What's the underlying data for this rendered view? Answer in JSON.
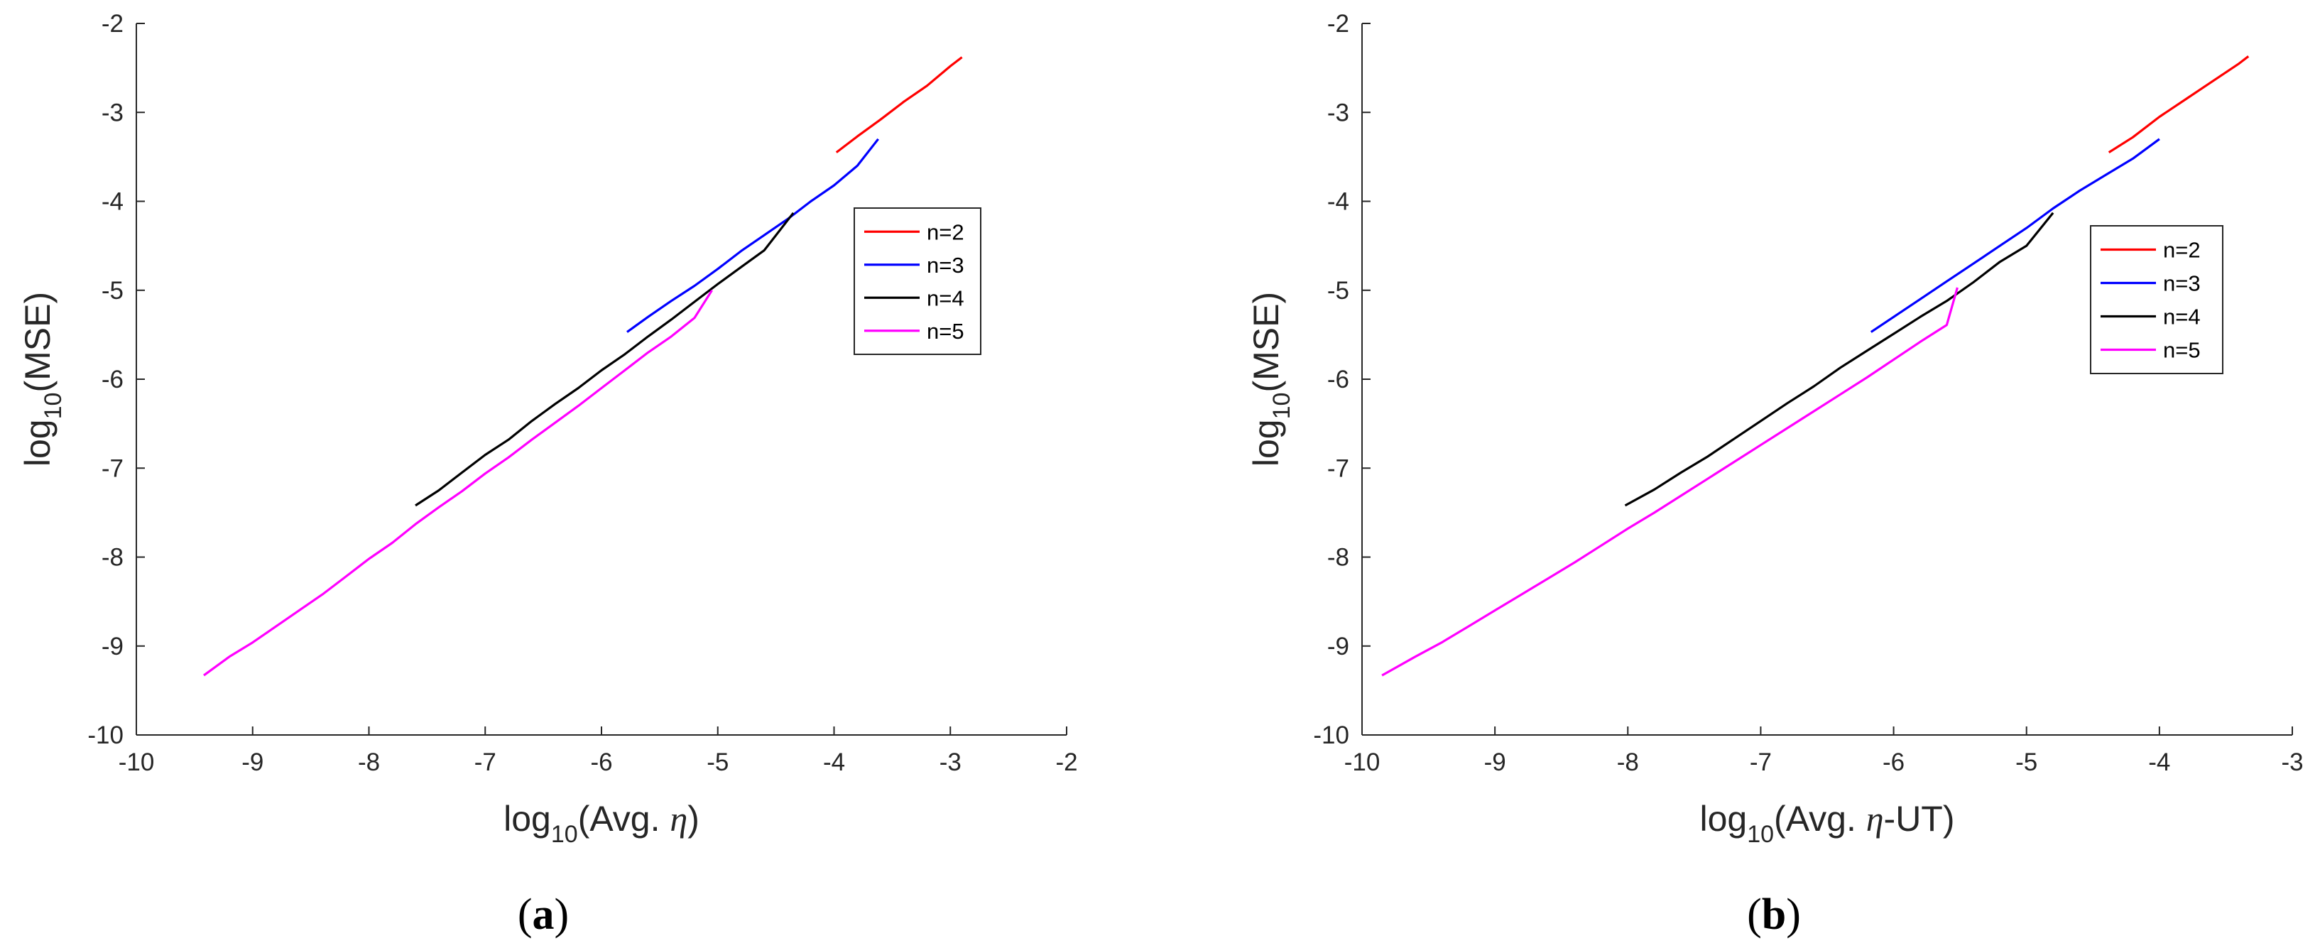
{
  "charts": [
    {
      "caption_letter": "a",
      "chart_data": {
        "type": "line",
        "xlabel_prefix": "log",
        "xlabel_sub": "10",
        "xlabel_main": "(Avg. ",
        "xlabel_eta": "η",
        "xlabel_suffix": ")",
        "ylabel_prefix": "log",
        "ylabel_sub": "10",
        "ylabel_main": "(MSE)",
        "xlim": [
          -10,
          -2
        ],
        "ylim": [
          -10,
          -2
        ],
        "xticks": [
          "-10",
          "-9",
          "-8",
          "-7",
          "-6",
          "-5",
          "-4",
          "-3",
          "-2"
        ],
        "yticks": [
          "-10",
          "-9",
          "-8",
          "-7",
          "-6",
          "-5",
          "-4",
          "-3",
          "-2"
        ],
        "legend_position": "right",
        "series": [
          {
            "name": "n=2",
            "color": "#ff0000",
            "x": [
              -3.98,
              -3.8,
              -3.6,
              -3.4,
              -3.2,
              -3.0,
              -2.9
            ],
            "y": [
              -3.45,
              -3.27,
              -3.08,
              -2.88,
              -2.7,
              -2.48,
              -2.38
            ]
          },
          {
            "name": "n=3",
            "color": "#0000ff",
            "x": [
              -5.78,
              -5.6,
              -5.4,
              -5.2,
              -5.0,
              -4.8,
              -4.6,
              -4.4,
              -4.2,
              -4.0,
              -3.8,
              -3.62
            ],
            "y": [
              -5.47,
              -5.3,
              -5.12,
              -4.95,
              -4.76,
              -4.56,
              -4.38,
              -4.2,
              -4.0,
              -3.82,
              -3.6,
              -3.3
            ]
          },
          {
            "name": "n=4",
            "color": "#000000",
            "x": [
              -7.6,
              -7.4,
              -7.2,
              -7.0,
              -6.8,
              -6.6,
              -6.4,
              -6.2,
              -6.0,
              -5.8,
              -5.6,
              -5.4,
              -5.2,
              -5.0,
              -4.8,
              -4.6,
              -4.35
            ],
            "y": [
              -7.42,
              -7.25,
              -7.05,
              -6.85,
              -6.68,
              -6.47,
              -6.28,
              -6.1,
              -5.9,
              -5.72,
              -5.52,
              -5.33,
              -5.13,
              -4.93,
              -4.74,
              -4.55,
              -4.13
            ]
          },
          {
            "name": "n=5",
            "color": "#ff00ff",
            "x": [
              -9.42,
              -9.2,
              -9.0,
              -8.8,
              -8.6,
              -8.4,
              -8.2,
              -8.0,
              -7.8,
              -7.6,
              -7.4,
              -7.2,
              -7.0,
              -6.8,
              -6.6,
              -6.4,
              -6.2,
              -6.0,
              -5.8,
              -5.6,
              -5.4,
              -5.2,
              -5.05
            ],
            "y": [
              -9.33,
              -9.12,
              -8.96,
              -8.78,
              -8.6,
              -8.42,
              -8.22,
              -8.02,
              -7.84,
              -7.63,
              -7.44,
              -7.26,
              -7.06,
              -6.88,
              -6.68,
              -6.49,
              -6.3,
              -6.1,
              -5.9,
              -5.7,
              -5.52,
              -5.31,
              -5.0
            ]
          }
        ]
      }
    },
    {
      "caption_letter": "b",
      "chart_data": {
        "type": "line",
        "xlabel_prefix": "log",
        "xlabel_sub": "10",
        "xlabel_main": "(Avg. ",
        "xlabel_eta": "η",
        "xlabel_suffix": "-UT)",
        "ylabel_prefix": "log",
        "ylabel_sub": "10",
        "ylabel_main": "(MSE)",
        "xlim": [
          -10,
          -3
        ],
        "ylim": [
          -10,
          -2
        ],
        "xticks": [
          "-10",
          "-9",
          "-8",
          "-7",
          "-6",
          "-5",
          "-4",
          "-3"
        ],
        "yticks": [
          "-10",
          "-9",
          "-8",
          "-7",
          "-6",
          "-5",
          "-4",
          "-3",
          "-2"
        ],
        "legend_position": "right",
        "series": [
          {
            "name": "n=2",
            "color": "#ff0000",
            "x": [
              -4.38,
              -4.2,
              -4.0,
              -3.8,
              -3.6,
              -3.4,
              -3.33
            ],
            "y": [
              -3.45,
              -3.28,
              -3.05,
              -2.85,
              -2.65,
              -2.45,
              -2.37
            ]
          },
          {
            "name": "n=3",
            "color": "#0000ff",
            "x": [
              -6.17,
              -6.0,
              -5.8,
              -5.6,
              -5.4,
              -5.2,
              -5.0,
              -4.8,
              -4.6,
              -4.4,
              -4.2,
              -4.0
            ],
            "y": [
              -5.47,
              -5.3,
              -5.1,
              -4.9,
              -4.7,
              -4.5,
              -4.3,
              -4.08,
              -3.88,
              -3.7,
              -3.52,
              -3.3
            ]
          },
          {
            "name": "n=4",
            "color": "#000000",
            "x": [
              -8.02,
              -7.8,
              -7.6,
              -7.4,
              -7.2,
              -7.0,
              -6.8,
              -6.6,
              -6.4,
              -6.2,
              -6.0,
              -5.8,
              -5.6,
              -5.4,
              -5.2,
              -5.0,
              -4.8
            ],
            "y": [
              -7.42,
              -7.24,
              -7.05,
              -6.87,
              -6.67,
              -6.47,
              -6.27,
              -6.08,
              -5.87,
              -5.68,
              -5.49,
              -5.3,
              -5.12,
              -4.91,
              -4.68,
              -4.5,
              -4.13
            ]
          },
          {
            "name": "n=5",
            "color": "#ff00ff",
            "x": [
              -9.85,
              -9.6,
              -9.4,
              -9.2,
              -9.0,
              -8.8,
              -8.6,
              -8.4,
              -8.2,
              -8.0,
              -7.8,
              -7.6,
              -7.4,
              -7.2,
              -7.0,
              -6.8,
              -6.6,
              -6.4,
              -6.2,
              -6.0,
              -5.8,
              -5.6,
              -5.52
            ],
            "y": [
              -9.33,
              -9.12,
              -8.96,
              -8.78,
              -8.6,
              -8.42,
              -8.24,
              -8.06,
              -7.87,
              -7.68,
              -7.5,
              -7.31,
              -7.12,
              -6.93,
              -6.74,
              -6.55,
              -6.36,
              -6.17,
              -5.98,
              -5.78,
              -5.58,
              -5.39,
              -4.97
            ]
          }
        ]
      }
    }
  ]
}
